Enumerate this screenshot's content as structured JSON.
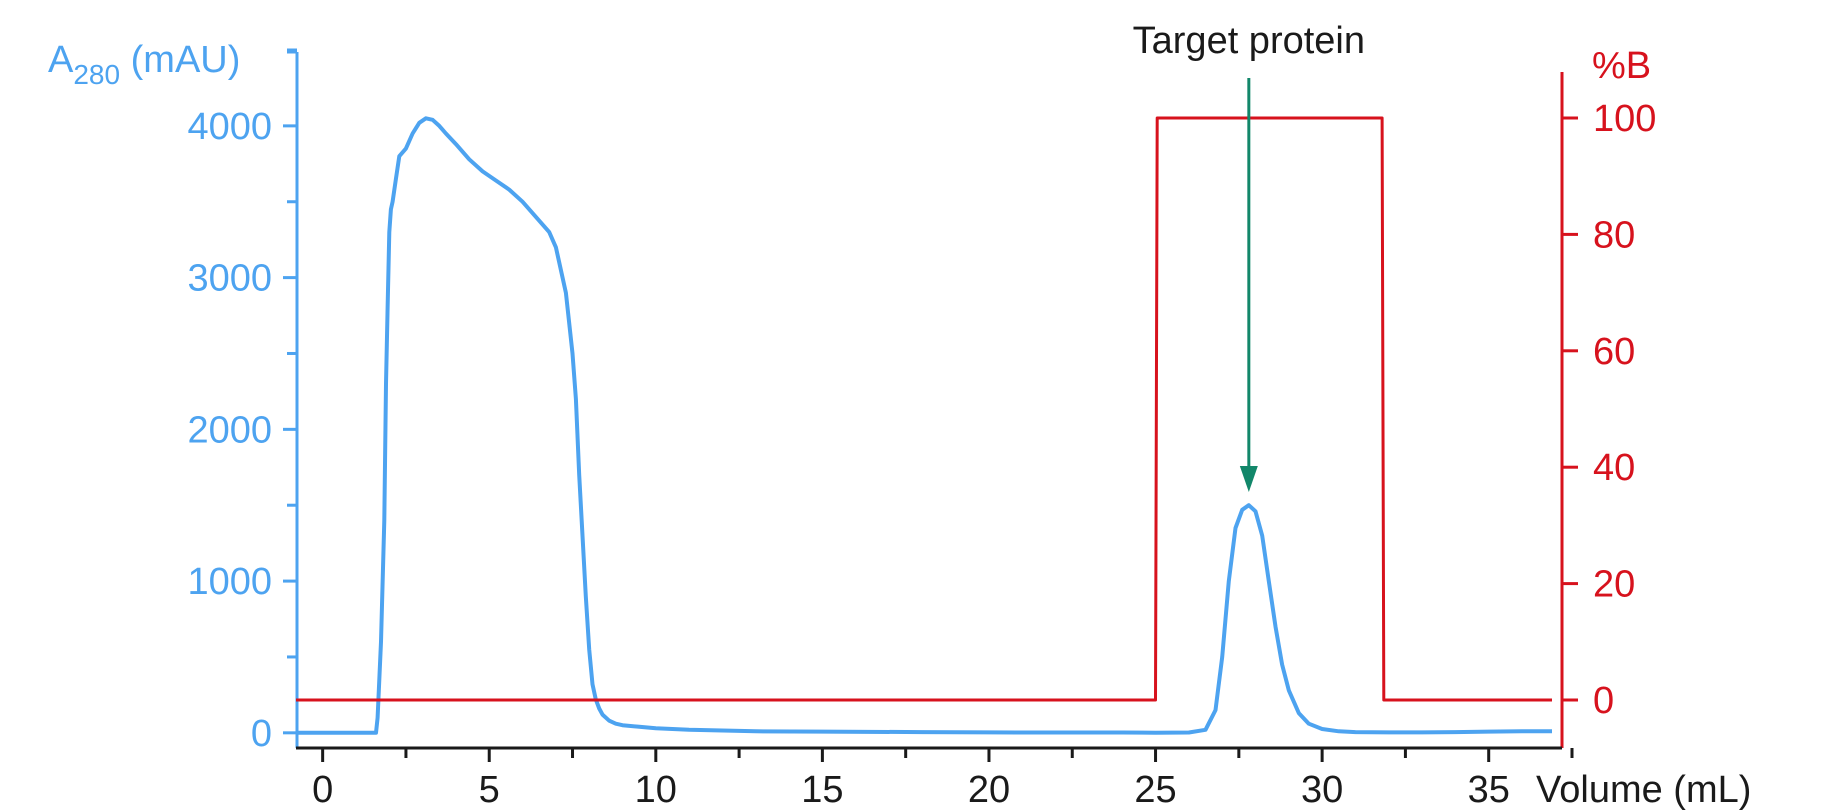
{
  "chart_data": {
    "type": "line",
    "annotation": {
      "label": "Target protein",
      "x": 27.8,
      "color": "#12876a"
    },
    "colors": {
      "absorbance": "#4da3f0",
      "percent_b": "#d7121d",
      "x_axis": "#1a1a1a"
    },
    "x_axis": {
      "label": "Volume (mL)",
      "range": [
        -0.8,
        37.2
      ],
      "ticks": [
        0,
        5,
        10,
        15,
        20,
        25,
        30,
        35
      ],
      "tick_labels": [
        "0",
        "5",
        "10",
        "15",
        "20",
        "25",
        "30",
        "35"
      ],
      "minor_step": 2.5
    },
    "y_left": {
      "label_main": "A",
      "label_sub": "280",
      "label_unit": " (mAU)",
      "range": [
        -100,
        4500
      ],
      "ticks": [
        0,
        1000,
        2000,
        3000,
        4000
      ],
      "tick_labels": [
        "0",
        "1000",
        "2000",
        "3000",
        "4000"
      ],
      "minor_step": 500
    },
    "y_right": {
      "label": "%B",
      "range": [
        -8,
        108
      ],
      "ticks": [
        0,
        20,
        40,
        60,
        80,
        100
      ],
      "tick_labels": [
        "0",
        "20",
        "40",
        "60",
        "80",
        "100"
      ]
    },
    "series": [
      {
        "axis": "left",
        "color": "#4da3f0",
        "x": [
          -0.8,
          1.6,
          1.65,
          1.75,
          1.85,
          1.9,
          1.95,
          2.0,
          2.05,
          2.1,
          2.2,
          2.3,
          2.5,
          2.7,
          2.9,
          3.1,
          3.3,
          3.5,
          3.7,
          4.0,
          4.4,
          4.8,
          5.2,
          5.6,
          6.0,
          6.4,
          6.8,
          7.0,
          7.3,
          7.5,
          7.6,
          7.7,
          7.8,
          7.9,
          8.0,
          8.1,
          8.2,
          8.3,
          8.4,
          8.6,
          8.8,
          9.0,
          9.5,
          10.0,
          11.0,
          12.0,
          13.0,
          15.0,
          18.0,
          20.0,
          22.0,
          24.0,
          25.0,
          26.0,
          26.5,
          26.8,
          27.0,
          27.2,
          27.4,
          27.6,
          27.8,
          28.0,
          28.2,
          28.4,
          28.6,
          28.8,
          29.0,
          29.3,
          29.6,
          30.0,
          30.5,
          31.0,
          32.0,
          33.0,
          34.0,
          35.0,
          36.0,
          36.9
        ],
        "y": [
          0,
          0,
          100,
          600,
          1400,
          2300,
          2800,
          3300,
          3450,
          3500,
          3650,
          3800,
          3850,
          3950,
          4020,
          4050,
          4040,
          4000,
          3950,
          3880,
          3780,
          3700,
          3640,
          3580,
          3500,
          3400,
          3300,
          3200,
          2900,
          2500,
          2200,
          1700,
          1300,
          900,
          550,
          320,
          220,
          160,
          120,
          80,
          60,
          50,
          40,
          30,
          20,
          15,
          10,
          8,
          5,
          3,
          2,
          2,
          1,
          2,
          20,
          150,
          500,
          1000,
          1350,
          1470,
          1500,
          1460,
          1300,
          1000,
          700,
          450,
          280,
          130,
          60,
          25,
          10,
          5,
          3,
          3,
          5,
          8,
          10,
          10
        ]
      },
      {
        "axis": "right",
        "color": "#d7121d",
        "x": [
          -0.8,
          25.0,
          25.05,
          31.8,
          31.85,
          36.9
        ],
        "y": [
          0,
          0,
          100,
          100,
          0,
          0
        ]
      }
    ]
  }
}
